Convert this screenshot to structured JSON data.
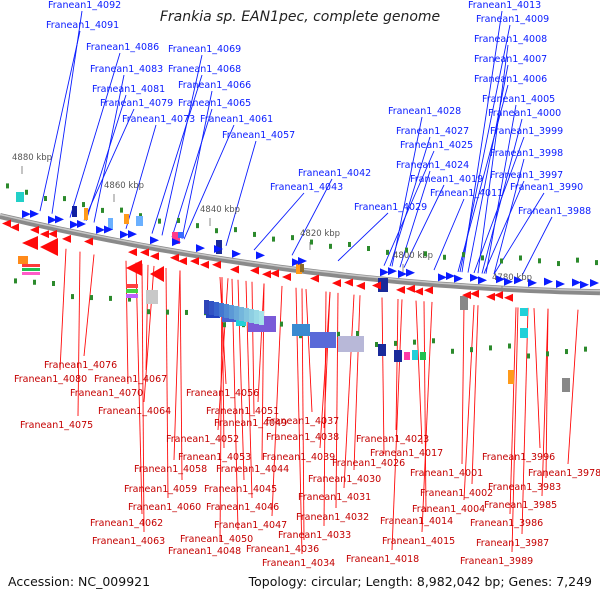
{
  "title": "Frankia sp. EAN1pec, complete genome",
  "footer": {
    "accession": "Accession: NC_009921",
    "summary": "Topology: circular; Length: 8,982,042 bp; Genes: 7,249"
  },
  "colors": {
    "forward_strand": "#0a1cff",
    "reverse_strand": "#ff0a0a",
    "backbone": "#8a8a8a",
    "tick": "#2c8a2c",
    "ruler_text": "#555555"
  },
  "scale_labels": [
    "4880 kbp",
    "4860 kbp",
    "4840 kbp",
    "4820 kbp",
    "4800 kbp",
    "4780 kbp"
  ],
  "forward_genes": [
    "Franean1_4092",
    "Franean1_4091",
    "Franean1_4086",
    "Franean1_4083",
    "Franean1_4081",
    "Franean1_4079",
    "Franean1_4073",
    "Franean1_4069",
    "Franean1_4068",
    "Franean1_4066",
    "Franean1_4065",
    "Franean1_4061",
    "Franean1_4057",
    "Franean1_4042",
    "Franean1_4043",
    "Franean1_4028",
    "Franean1_4027",
    "Franean1_4025",
    "Franean1_4024",
    "Franean1_4019",
    "Franean1_4029",
    "Franean1_4011",
    "Franean1_4013",
    "Franean1_4009",
    "Franean1_4008",
    "Franean1_4007",
    "Franean1_4006",
    "Franean1_4005",
    "Franean1_4000",
    "Franean1_3999",
    "Franean1_3998",
    "Franean1_3997",
    "Franean1_3990",
    "Franean1_3988"
  ],
  "reverse_genes": [
    "Franean1_4076",
    "Franean1_4080",
    "Franean1_4067",
    "Franean1_4070",
    "Franean1_4056",
    "Franean1_4064",
    "Franean1_4051",
    "Franean1_4075",
    "Franean1_4049",
    "Franean1_4037",
    "Franean1_4052",
    "Franean1_4038",
    "Franean1_4023",
    "Franean1_4053",
    "Franean1_4017",
    "Franean1_4039",
    "Franean1_4058",
    "Franean1_4044",
    "Franean1_4026",
    "Franean1_3996",
    "Franean1_3978",
    "Franean1_4030",
    "Franean1_4001",
    "Franean1_4059",
    "Franean1_4045",
    "Franean1_4031",
    "Franean1_4002",
    "Franean1_3983",
    "Franean1_4060",
    "Franean1_4046",
    "Franean1_4004",
    "Franean1_3985",
    "Franean1_4032",
    "Franean1_4014",
    "Franean1_4062",
    "Franean1_4047",
    "Franean1_3986",
    "Franean1_4033",
    "Franean1_4063",
    "Franean1_4050",
    "Franean1_4015",
    "Franean1_3987",
    "Franean1_4048",
    "Franean1_4036",
    "Franean1_4034",
    "Franean1_4018",
    "Franean1_3989"
  ]
}
